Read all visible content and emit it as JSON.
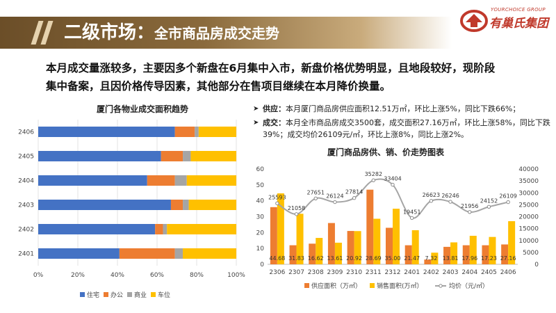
{
  "header": {
    "title_main": "二级市场：",
    "title_sub": "全市商品房成交走势",
    "logo_en": "YOURCHOICE GROUP",
    "logo_cn": "有巢氏集团",
    "band_color": "#7a5b31"
  },
  "summary": {
    "line1": "本月成交量涨较多，主要因多个新盘在6月集中入市，新盘价格优势明显，且地段较好，现阶段",
    "line2": "集中备案，且因价格传导因素，其他部分在售项目继续在本月降价换量。"
  },
  "bullets": [
    {
      "label": "供应：",
      "text": "本月厦门商品房供应面积12.51万㎡，环比上涨5%，同比下跌66%；"
    },
    {
      "label": "成交：",
      "text": "本月全市商品房成交3500套，成交面积27.16万㎡，环比上涨58%，同比下跌39%；成交均价26109元/㎡，环比上涨8%，同比上涨2%。"
    }
  ],
  "chart_data": [
    {
      "type": "bar",
      "orientation": "horizontal",
      "stacked": "percent",
      "title": "厦门各物业成交面积趋势",
      "categories": [
        "2406",
        "2405",
        "2404",
        "2403",
        "2402",
        "2401"
      ],
      "series": [
        {
          "name": "住宅",
          "color": "#4472c4",
          "values": [
            69,
            62,
            55,
            67,
            59,
            41
          ]
        },
        {
          "name": "办公",
          "color": "#ed7d31",
          "values": [
            10,
            11,
            14,
            6,
            4,
            28
          ]
        },
        {
          "name": "商业",
          "color": "#a5a5a5",
          "values": [
            2,
            4,
            6,
            3,
            2,
            4
          ]
        },
        {
          "name": "车位",
          "color": "#ffc000",
          "values": [
            19,
            23,
            25,
            24,
            35,
            27
          ]
        }
      ],
      "xticks": [
        "0%",
        "20%",
        "40%",
        "60%",
        "80%",
        "100%"
      ],
      "xlim": [
        0,
        100
      ],
      "grid": true,
      "legend": "bottom"
    },
    {
      "type": "bar",
      "combo": "bar+line",
      "title": "厦门商品房供、销、价走势图表",
      "categories": [
        "2306",
        "2307",
        "2308",
        "2309",
        "2310",
        "2311",
        "2312",
        "2401",
        "2402",
        "2403",
        "2404",
        "2405",
        "2406"
      ],
      "series": [
        {
          "name": "供应面积（万㎡）",
          "color": "#ed7d31",
          "axis": "left",
          "values": [
            36,
            12,
            13,
            26,
            21,
            47,
            23,
            12,
            3,
            11,
            12,
            12,
            12.51
          ]
        },
        {
          "name": "销售面积(万㎡）",
          "color": "#ffc000",
          "axis": "left",
          "values": [
            44.68,
            31.83,
            16.62,
            13.61,
            20.92,
            28.69,
            35.0,
            21.47,
            7.32,
            13.81,
            17.96,
            17.23,
            27.16
          ]
        },
        {
          "name": "均价（元/㎡）",
          "type": "line",
          "color": "#a5a5a5",
          "axis": "right",
          "values": [
            25593,
            21058,
            27651,
            26124,
            27814,
            35282,
            33404,
            19451,
            26623,
            26246,
            21956,
            24152,
            26109
          ]
        }
      ],
      "bar_labels": [
        "44.68",
        "31.83",
        "16.62",
        "13.61",
        "20.92",
        "28.69",
        "35.00",
        "21.47",
        "7.32",
        "13.81",
        "17.96",
        "17.23",
        "27.16"
      ],
      "line_labels": [
        "25593",
        "21058",
        "27651",
        "26124",
        "27814",
        "35282",
        "33404",
        "19451",
        "26623",
        "26246",
        "21956",
        "24152",
        "26109"
      ],
      "yticks_left": [
        "0",
        "10",
        "20",
        "30",
        "40",
        "50",
        "60"
      ],
      "yticks_right": [
        "0",
        "5000",
        "10000",
        "15000",
        "20000",
        "25000",
        "30000",
        "35000",
        "40000"
      ],
      "ylim_left": [
        0,
        60
      ],
      "ylim_right": [
        0,
        40000
      ],
      "legend": "bottom"
    }
  ]
}
